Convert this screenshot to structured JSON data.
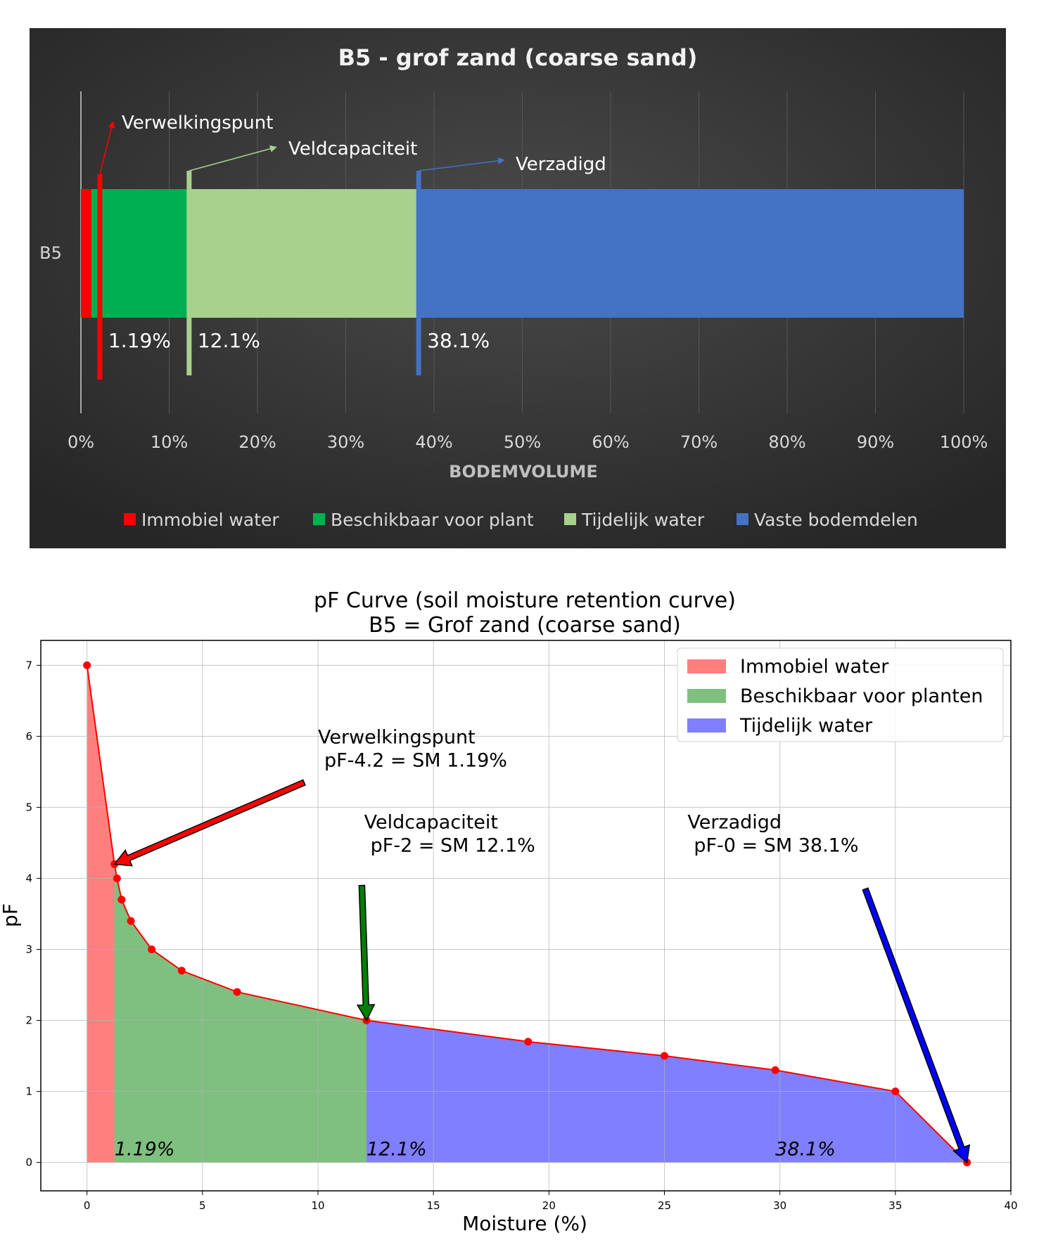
{
  "chart_data": [
    {
      "type": "bar",
      "orientation": "horizontal",
      "stacked": true,
      "title": "B5 - grof zand (coarse sand)",
      "category": "B5",
      "xlabel": "BODEMVOLUME",
      "xlim": [
        0,
        100
      ],
      "xticks": [
        "0%",
        "10%",
        "20%",
        "30%",
        "40%",
        "50%",
        "60%",
        "70%",
        "80%",
        "90%",
        "100%"
      ],
      "grid": true,
      "legend_position": "bottom",
      "background": "#2e2e2e",
      "series": [
        {
          "name": "Immobiel water",
          "value": 1.19,
          "color": "#ff0000"
        },
        {
          "name": "Beschikbaar voor plant",
          "value": 10.91,
          "color": "#00b050"
        },
        {
          "name": "Tijdelijk water",
          "value": 26.0,
          "color": "#a9d18e"
        },
        {
          "name": "Vaste bodemdelen",
          "value": 61.9,
          "color": "#4472c4"
        }
      ],
      "markers": [
        {
          "name": "Verwelkingspunt",
          "x": 1.19,
          "label": "1.19%",
          "color": "#ff0000"
        },
        {
          "name": "Veldcapaciteit",
          "x": 12.1,
          "label": "12.1%",
          "color": "#a9d18e"
        },
        {
          "name": "Verzadigd",
          "x": 38.1,
          "label": "38.1%",
          "color": "#4472c4"
        }
      ]
    },
    {
      "type": "line",
      "title": "pF Curve (soil moisture retention curve)",
      "subtitle": "B5 = Grof zand (coarse sand)",
      "xlabel": "Moisture (%)",
      "ylabel": "pF",
      "xlim": [
        -2,
        40
      ],
      "ylim": [
        -0.4,
        7.35
      ],
      "xticks": [
        0,
        5,
        10,
        15,
        20,
        25,
        30,
        35,
        40
      ],
      "yticks": [
        0,
        1,
        2,
        3,
        4,
        5,
        6,
        7
      ],
      "grid": true,
      "legend_position": "top-right",
      "series": [
        {
          "color": "#ff0000",
          "x": [
            0,
            1.19,
            1.3,
            1.5,
            1.9,
            2.8,
            4.1,
            6.5,
            12.1,
            19.1,
            25.0,
            29.8,
            35.0,
            38.1
          ],
          "y": [
            7.0,
            4.2,
            4.0,
            3.7,
            3.4,
            3.0,
            2.7,
            2.4,
            2.0,
            1.7,
            1.5,
            1.3,
            1.0,
            0.0
          ]
        }
      ],
      "regions": [
        {
          "name": "Immobiel water",
          "from": 0,
          "to": 1.19,
          "color": "#ff0000",
          "opacity": 0.5
        },
        {
          "name": "Beschikbaar voor planten",
          "from": 1.19,
          "to": 12.1,
          "color": "#008000",
          "opacity": 0.5
        },
        {
          "name": "Tijdelijk water",
          "from": 12.1,
          "to": 38.1,
          "color": "#0000ff",
          "opacity": 0.5
        }
      ],
      "region_labels": [
        {
          "text": "1.19%",
          "x": 1.19
        },
        {
          "text": "12.1%",
          "x": 12.1
        },
        {
          "text": "38.1%",
          "x": 29.8
        }
      ],
      "annotations": [
        {
          "line1": "Verwelkingspunt",
          "line2": "pF-4.2 = SM 1.19%",
          "x": 10.0,
          "y": 5.9,
          "arrow_from": [
            9.4,
            5.35
          ],
          "arrow_to": [
            1.19,
            4.2
          ],
          "color": "#ff0000"
        },
        {
          "line1": "Veldcapaciteit",
          "line2": "pF-2 = SM 12.1%",
          "x": 12.0,
          "y": 4.7,
          "arrow_from": [
            11.9,
            3.9
          ],
          "arrow_to": [
            12.1,
            2.0
          ],
          "color": "#008000"
        },
        {
          "line1": "Verzadigd",
          "line2": "pF-0 = SM 38.1%",
          "x": 26.0,
          "y": 4.7,
          "arrow_from": [
            33.7,
            3.85
          ],
          "arrow_to": [
            38.1,
            0.0
          ],
          "color": "#0000ff"
        }
      ]
    }
  ]
}
